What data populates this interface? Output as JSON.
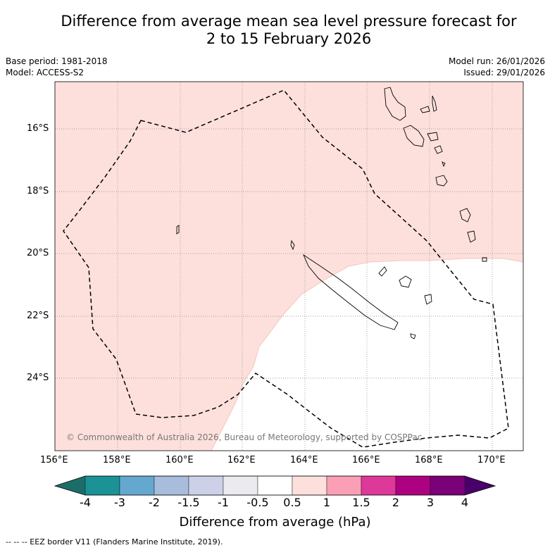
{
  "title": {
    "line1": "Difference from average mean sea level pressure forecast for",
    "line2": "2 to 15 February 2026"
  },
  "meta_left": {
    "base_period": "Base period: 1981-2018",
    "model": "Model: ACCESS-S2"
  },
  "meta_right": {
    "model_run": "Model run: 26/01/2026",
    "issued": "Issued: 29/01/2026"
  },
  "map": {
    "lon_range": [
      156,
      171
    ],
    "lat_range": [
      -26.0,
      -14.7
    ],
    "lon_ticks": [
      {
        "value": 156,
        "label": "156°E"
      },
      {
        "value": 158,
        "label": "158°E"
      },
      {
        "value": 160,
        "label": "160°E"
      },
      {
        "value": 162,
        "label": "162°E"
      },
      {
        "value": 164,
        "label": "164°E"
      },
      {
        "value": 166,
        "label": "166°E"
      },
      {
        "value": 168,
        "label": "168°E"
      },
      {
        "value": 170,
        "label": "170°E"
      }
    ],
    "lat_ticks": [
      {
        "value": -16,
        "label": "16°S"
      },
      {
        "value": -18,
        "label": "18°S"
      },
      {
        "value": -20,
        "label": "20°S"
      },
      {
        "value": -22,
        "label": "22°S"
      },
      {
        "value": -24,
        "label": "24°S"
      }
    ],
    "anomaly_bins": [
      {
        "category": "0.5 to 1",
        "color": "#fde0dc"
      },
      {
        "category": "-0.5 to 0.5",
        "color": "#ffffff"
      }
    ],
    "copyright": "© Commonwealth of Australia 2026, Bureau of Meteorology, supported by COSPPac"
  },
  "colorbar": {
    "colors": [
      "#1b6e68",
      "#1a9296",
      "#64a8d0",
      "#a8bcdc",
      "#cdd1e8",
      "#ebebef",
      "#ffffff",
      "#fde0dc",
      "#fa9fb6",
      "#de3898",
      "#ae0182",
      "#7a0177",
      "#4a006a"
    ],
    "labels": [
      "-4",
      "-3",
      "-2",
      "-1.5",
      "-1",
      "-0.5",
      "0.5",
      "1",
      "1.5",
      "2",
      "3",
      "4"
    ],
    "title": "Difference from average (hPa)"
  },
  "footer": "--  --  -- EEZ border V11 (Flanders Marine Institute, 2019)."
}
